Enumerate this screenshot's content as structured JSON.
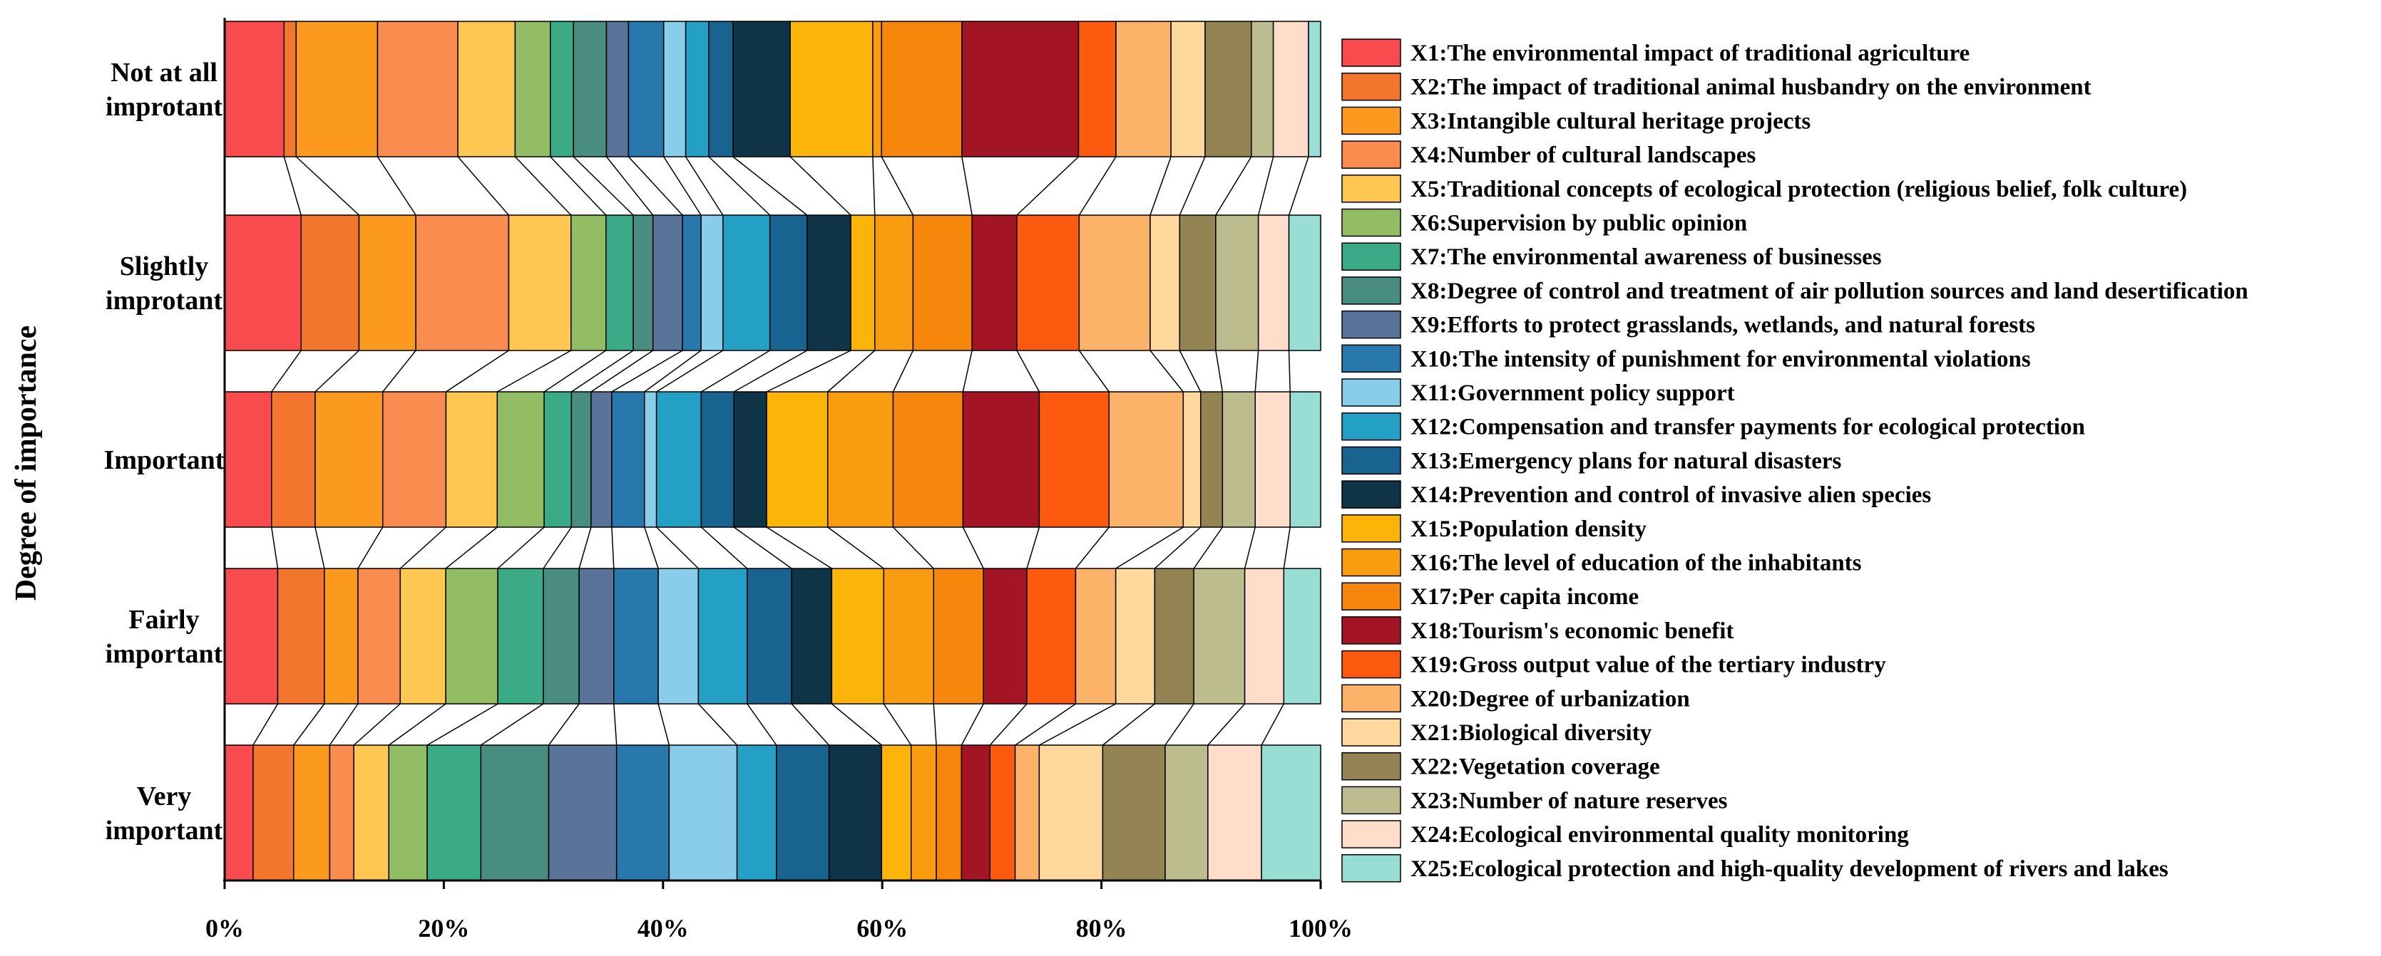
{
  "chart_data": {
    "type": "bar",
    "orientation": "horizontal",
    "stacked": true,
    "normalized": true,
    "ylabel": "Degree of importance",
    "xlabel": "",
    "xlim": [
      0,
      100
    ],
    "x_ticks": [
      "0%",
      "20%",
      "40%",
      "60%",
      "80%",
      "100%"
    ],
    "categories": [
      [
        "Not at all",
        "improtant"
      ],
      [
        "Slightly",
        "improtant"
      ],
      [
        "Important"
      ],
      [
        "Fairly",
        "important"
      ],
      [
        "Very",
        "important"
      ]
    ],
    "legend_position": "right",
    "series": [
      {
        "name": "X1:The environmental impact of traditional agriculture",
        "color": "#F94A4D",
        "values": [
          5.4,
          7.0,
          4.3,
          4.9,
          2.6
        ]
      },
      {
        "name": "X2:The impact of traditional animal husbandry on the environment",
        "color": "#F4762E",
        "values": [
          1.1,
          5.3,
          4.0,
          4.3,
          3.7
        ]
      },
      {
        "name": "X3:Intangible cultural heritage projects",
        "color": "#FB9A1E",
        "values": [
          7.4,
          5.2,
          6.2,
          3.1,
          3.3
        ]
      },
      {
        "name": "X4:Number of cultural landscapes",
        "color": "#FB8C50",
        "values": [
          7.3,
          8.5,
          5.8,
          3.9,
          2.2
        ]
      },
      {
        "name": "X5:Traditional concepts of ecological protection (religious belief, folk culture)",
        "color": "#FDC752",
        "values": [
          5.2,
          5.7,
          4.7,
          4.2,
          3.2
        ]
      },
      {
        "name": "X6:Supervision by public opinion",
        "color": "#93BD65",
        "values": [
          3.2,
          3.2,
          4.3,
          4.8,
          3.5
        ]
      },
      {
        "name": "X7:The environmental awareness of businesses",
        "color": "#3BAA87",
        "values": [
          2.1,
          2.5,
          2.5,
          4.2,
          4.9
        ]
      },
      {
        "name": "X8:Degree of control and treatment of air pollution sources and land desertification",
        "color": "#498C80",
        "values": [
          3.0,
          1.8,
          1.8,
          3.3,
          6.2
        ]
      },
      {
        "name": "X9:Efforts to protect grasslands, wetlands, and natural forests",
        "color": "#5A7398",
        "values": [
          2.0,
          2.7,
          1.9,
          3.2,
          6.2
        ]
      },
      {
        "name": "X10:The intensity of punishment for environmental violations",
        "color": "#2877AD",
        "values": [
          3.2,
          1.7,
          3.0,
          4.1,
          4.8
        ]
      },
      {
        "name": "X11:Government policy support",
        "color": "#8ACDEB",
        "values": [
          2.0,
          2.0,
          1.1,
          3.7,
          6.2
        ]
      },
      {
        "name": "X12:Compensation and transfer payments for ecological protection",
        "color": "#249FC6",
        "values": [
          2.1,
          4.3,
          4.1,
          4.5,
          3.6
        ]
      },
      {
        "name": "X13:Emergency plans for natural disasters",
        "color": "#196391",
        "values": [
          2.2,
          3.4,
          3.0,
          4.1,
          4.8
        ]
      },
      {
        "name": "X14:Prevention and control of invasive alien species",
        "color": "#0F3447",
        "values": [
          5.2,
          4.0,
          3.0,
          3.7,
          4.8
        ]
      },
      {
        "name": "X15:Population density",
        "color": "#FDB409",
        "values": [
          7.5,
          2.2,
          5.6,
          4.8,
          2.7
        ]
      },
      {
        "name": "X16:The level of education of the inhabitants",
        "color": "#FA9C10",
        "values": [
          0.8,
          3.5,
          6.0,
          4.6,
          2.3
        ]
      },
      {
        "name": "X17:Per capita income",
        "color": "#F7860C",
        "values": [
          7.3,
          5.4,
          6.4,
          4.6,
          2.3
        ]
      },
      {
        "name": "X18:Tourism's economic benefit",
        "color": "#A31524",
        "values": [
          10.6,
          4.1,
          7.0,
          4.0,
          2.6
        ]
      },
      {
        "name": "X19:Gross output value of the tertiary industry",
        "color": "#FC5A0F",
        "values": [
          3.4,
          5.7,
          6.4,
          4.5,
          2.3
        ]
      },
      {
        "name": "X20:Degree of urbanization",
        "color": "#FDB26A",
        "values": [
          5.0,
          6.5,
          6.8,
          3.7,
          2.2
        ]
      },
      {
        "name": "X21:Biological diversity",
        "color": "#FED89C",
        "values": [
          3.1,
          2.7,
          1.6,
          3.6,
          5.8
        ]
      },
      {
        "name": "X22:Vegetation coverage",
        "color": "#948453",
        "values": [
          4.2,
          3.3,
          2.0,
          3.6,
          5.7
        ]
      },
      {
        "name": "X23:Number of nature reserves",
        "color": "#BDBC8E",
        "values": [
          2.0,
          3.9,
          3.0,
          4.7,
          3.9
        ]
      },
      {
        "name": "X24:Ecological environmental quality monitoring",
        "color": "#FFDDCA",
        "values": [
          3.2,
          2.8,
          3.2,
          3.6,
          4.9
        ]
      },
      {
        "name": "X25:Ecological protection and high-quality development of rivers and lakes",
        "color": "#99DED4",
        "values": [
          1.1,
          2.9,
          2.8,
          3.4,
          5.4
        ]
      }
    ]
  }
}
